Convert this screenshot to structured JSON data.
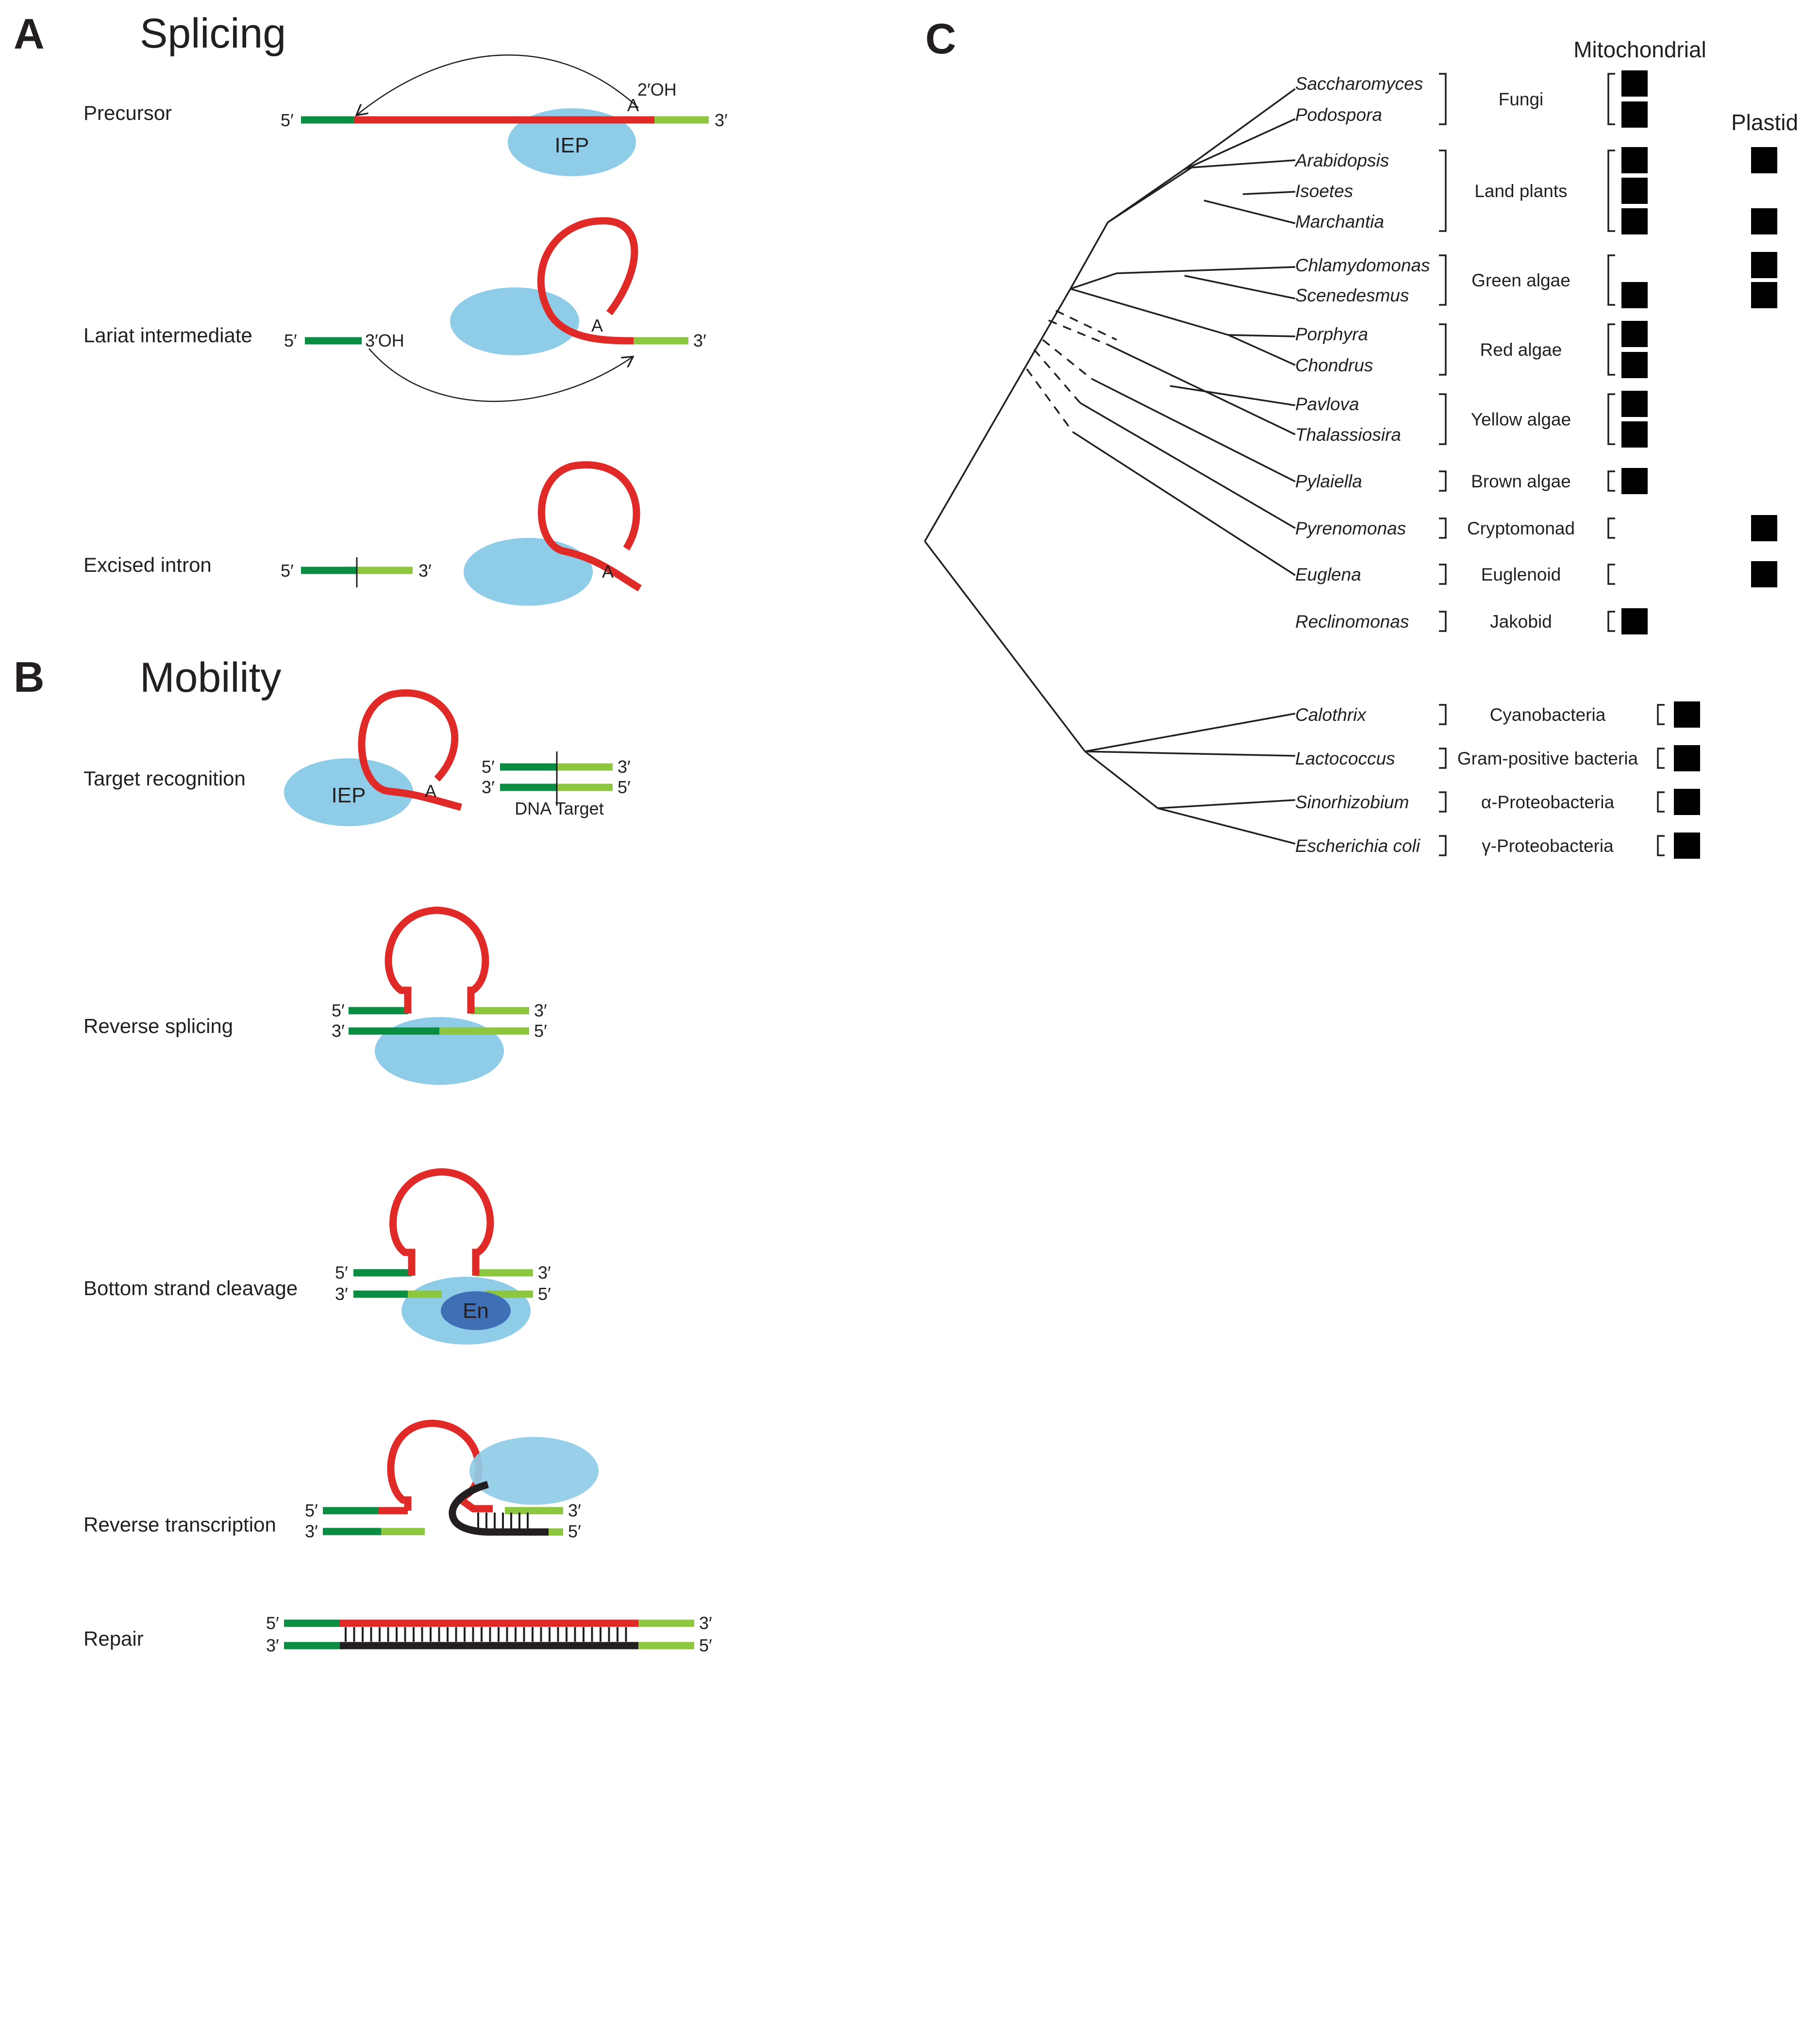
{
  "colors": {
    "exon5": "#0a8c43",
    "exon3": "#8dc63f",
    "intron": "#e02a27",
    "iep": "#8fcce8",
    "en": "#3f6fb5",
    "cdna": "#231f20",
    "marker": "#000000"
  },
  "panelA": {
    "letter": "A",
    "title": "Splicing",
    "steps": {
      "precursor": "Precursor",
      "lariat": "Lariat intermediate",
      "excised": "Excised intron"
    },
    "labels": {
      "five_prime": "5′",
      "three_prime": "3′",
      "two_oh": "2′OH",
      "three_oh": "3′OH",
      "adenosine": "A",
      "iep": "IEP"
    }
  },
  "panelB": {
    "letter": "B",
    "title": "Mobility",
    "steps": {
      "target": "Target recognition",
      "reverse_splicing": "Reverse splicing",
      "cleavage": "Bottom strand cleavage",
      "rt": "Reverse transcription",
      "repair": "Repair"
    },
    "labels": {
      "dna_target": "DNA Target",
      "en": "En"
    }
  },
  "panelC": {
    "letter": "C",
    "mito_header": "Mitochondrial",
    "plastid_header": "Plastid",
    "rows": [
      {
        "species": "Saccharomyces",
        "mito": true,
        "plastid": false
      },
      {
        "species": "Podospora",
        "mito": true,
        "plastid": false
      },
      {
        "species": "Arabidopsis",
        "mito": true,
        "plastid": true
      },
      {
        "species": "Isoetes",
        "mito": true,
        "plastid": false
      },
      {
        "species": "Marchantia",
        "mito": true,
        "plastid": true
      },
      {
        "species": "Chlamydomonas",
        "mito": false,
        "plastid": true
      },
      {
        "species": "Scenedesmus",
        "mito": true,
        "plastid": true
      },
      {
        "species": "Porphyra",
        "mito": true,
        "plastid": false
      },
      {
        "species": "Chondrus",
        "mito": true,
        "plastid": false
      },
      {
        "species": "Pavlova",
        "mito": true,
        "plastid": false
      },
      {
        "species": "Thalassiosira",
        "mito": true,
        "plastid": false
      },
      {
        "species": "Pylaiella",
        "mito": true,
        "plastid": false
      },
      {
        "species": "Pyrenomonas",
        "mito": false,
        "plastid": true
      },
      {
        "species": "Euglena",
        "mito": false,
        "plastid": true
      },
      {
        "species": "Reclinomonas",
        "mito": true,
        "plastid": false
      },
      {
        "species": "Calothrix",
        "bact": true
      },
      {
        "species": "Lactococcus",
        "bact": true
      },
      {
        "species": "Sinorhizobium",
        "bact": true
      },
      {
        "species": "Escherichia coli",
        "bact": true
      }
    ],
    "groups": [
      {
        "name": "Fungi"
      },
      {
        "name": "Land plants"
      },
      {
        "name": "Green algae"
      },
      {
        "name": "Red algae"
      },
      {
        "name": "Yellow algae"
      },
      {
        "name": "Brown algae"
      },
      {
        "name": "Cryptomonad"
      },
      {
        "name": "Euglenoid"
      },
      {
        "name": "Jakobid"
      },
      {
        "name": "Cyanobacteria"
      },
      {
        "name": "Gram-positive bacteria"
      },
      {
        "name": "α-Proteobacteria"
      },
      {
        "name": "γ-Proteobacteria"
      }
    ]
  }
}
